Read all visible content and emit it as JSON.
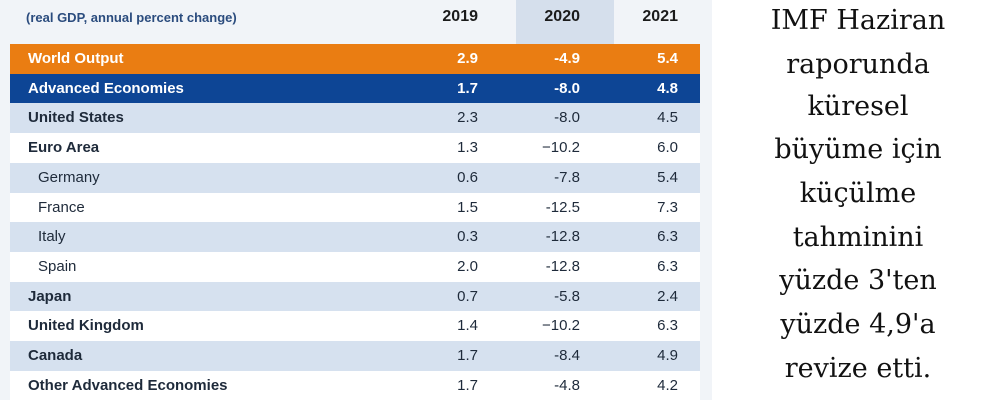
{
  "chart_data": {
    "type": "table",
    "subtitle": "(real GDP, annual percent change)",
    "columns": [
      "2019",
      "2020",
      "2021"
    ],
    "rows": [
      {
        "label": "World Output",
        "values": [
          "2.9",
          "-4.9",
          "5.4"
        ],
        "style": "world"
      },
      {
        "label": "Advanced Economies",
        "values": [
          "1.7",
          "-8.0",
          "4.8"
        ],
        "style": "advanced"
      },
      {
        "label": "United States",
        "values": [
          "2.3",
          "-8.0",
          "4.5"
        ],
        "style": "band-bold"
      },
      {
        "label": "Euro Area",
        "values": [
          "1.3",
          "−10.2",
          "6.0"
        ],
        "style": "plain-bold"
      },
      {
        "label": "Germany",
        "values": [
          "0.6",
          "-7.8",
          "5.4"
        ],
        "style": "band-sub"
      },
      {
        "label": "France",
        "values": [
          "1.5",
          "-12.5",
          "7.3"
        ],
        "style": "plain-sub"
      },
      {
        "label": "Italy",
        "values": [
          "0.3",
          "-12.8",
          "6.3"
        ],
        "style": "band-sub"
      },
      {
        "label": "Spain",
        "values": [
          "2.0",
          "-12.8",
          "6.3"
        ],
        "style": "plain-sub"
      },
      {
        "label": "Japan",
        "values": [
          "0.7",
          "-5.8",
          "2.4"
        ],
        "style": "band-bold"
      },
      {
        "label": "United Kingdom",
        "values": [
          "1.4",
          "−10.2",
          "6.3"
        ],
        "style": "plain-bold"
      },
      {
        "label": "Canada",
        "values": [
          "1.7",
          "-8.4",
          "4.9"
        ],
        "style": "band-bold"
      },
      {
        "label": "Other Advanced Economies",
        "values": [
          "1.7",
          "-4.8",
          "4.2"
        ],
        "style": "plain-bold"
      }
    ]
  },
  "caption": {
    "lines": [
      "IMF Haziran",
      "raporunda",
      "küresel",
      "büyüme için",
      "küçülme",
      "tahminini",
      "yüzde 3'ten",
      "yüzde 4,9'a",
      "revize etti."
    ]
  },
  "colors": {
    "world_output": "#ea7d12",
    "advanced_economies": "#0d4595",
    "band": "#d6e1ef"
  }
}
